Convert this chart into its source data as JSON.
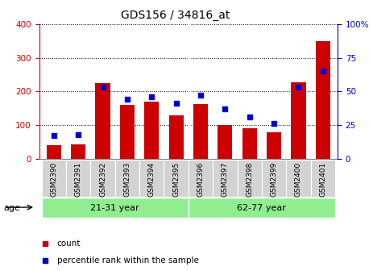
{
  "title": "GDS156 / 34816_at",
  "samples": [
    "GSM2390",
    "GSM2391",
    "GSM2392",
    "GSM2393",
    "GSM2394",
    "GSM2395",
    "GSM2396",
    "GSM2397",
    "GSM2398",
    "GSM2399",
    "GSM2400",
    "GSM2401"
  ],
  "counts": [
    40,
    42,
    225,
    160,
    170,
    130,
    163,
    100,
    90,
    78,
    228,
    350
  ],
  "percentiles": [
    17,
    18,
    53,
    44,
    46,
    41,
    47,
    37,
    31,
    26,
    53,
    65
  ],
  "group1_label": "21-31 year",
  "group2_label": "62-77 year",
  "group1_count": 6,
  "bar_color": "#cc0000",
  "marker_color": "#0000cc",
  "left_ylim": [
    0,
    400
  ],
  "right_ylim": [
    0,
    100
  ],
  "left_yticks": [
    0,
    100,
    200,
    300,
    400
  ],
  "right_yticks": [
    0,
    25,
    50,
    75,
    100
  ],
  "left_tick_color": "#cc0000",
  "right_tick_color": "#0000cc",
  "age_label": "age",
  "group_color": "#90ee90",
  "xticklabel_bg": "#d3d3d3",
  "plot_bg": "#ffffff",
  "grid_color": "#000000"
}
